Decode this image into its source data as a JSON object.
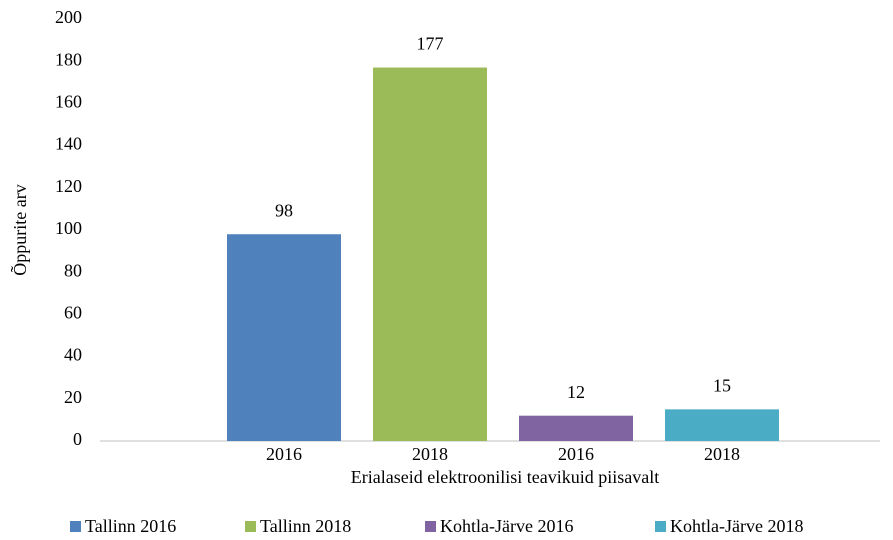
{
  "chart_data": {
    "type": "bar",
    "x_label": "Erialaseid elektroonilisi teavikuid piisavalt",
    "y_label": "Õppurite arv",
    "categories": [
      "2016",
      "2018",
      "2016",
      "2018"
    ],
    "values": [
      98,
      177,
      12,
      15
    ],
    "colors": [
      "#4f81bd",
      "#9bbb59",
      "#8064a2",
      "#4bacc6"
    ],
    "legend": [
      "Tallinn 2016",
      "Tallinn 2018",
      "Kohtla-Järve 2016",
      "Kohtla-Järve 2018"
    ],
    "ylim": [
      0,
      200
    ],
    "yticks": [
      0,
      20,
      40,
      60,
      80,
      100,
      120,
      140,
      160,
      180,
      200
    ],
    "grid": false,
    "legend_position": "bottom"
  }
}
